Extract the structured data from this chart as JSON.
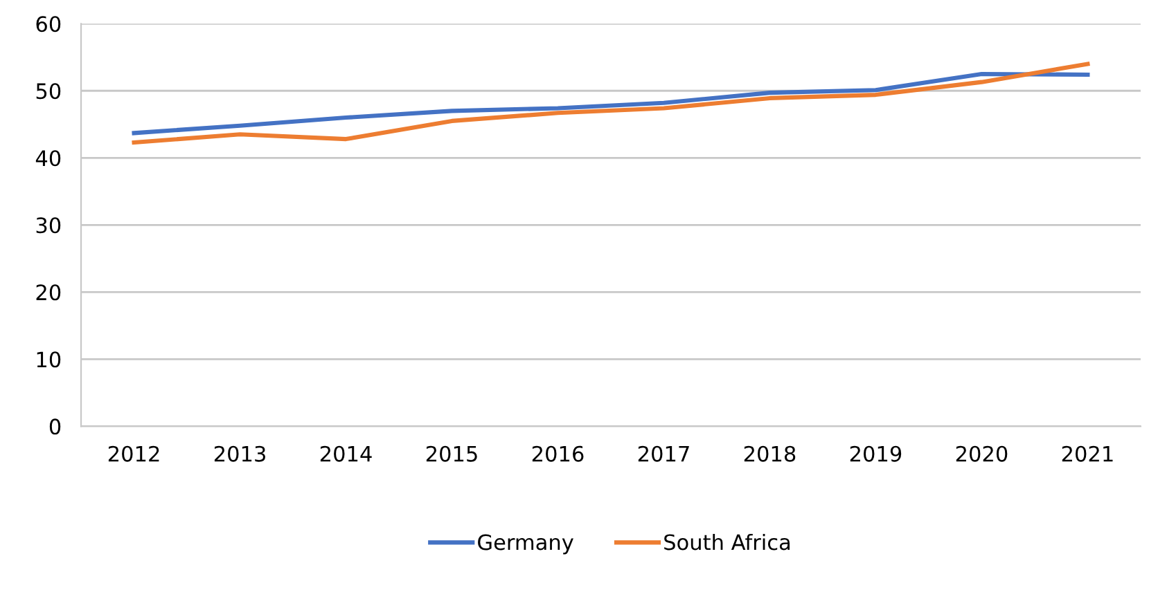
{
  "chart_data": {
    "type": "line",
    "categories": [
      "2012",
      "2013",
      "2014",
      "2015",
      "2016",
      "2017",
      "2018",
      "2019",
      "2020",
      "2021"
    ],
    "series": [
      {
        "name": "Germany",
        "color": "#4472c4",
        "values": [
          43.7,
          44.8,
          46.0,
          47.0,
          47.4,
          48.2,
          49.7,
          50.1,
          52.5,
          52.4
        ]
      },
      {
        "name": "South Africa",
        "color": "#ed7d31",
        "values": [
          42.3,
          43.5,
          42.8,
          45.5,
          46.7,
          47.4,
          48.9,
          49.4,
          51.3,
          54.0
        ]
      }
    ],
    "ylim": [
      0,
      60
    ],
    "yticks": [
      0,
      10,
      20,
      30,
      40,
      50,
      60
    ],
    "grid": "y",
    "legend": "bottom",
    "marker": "none",
    "line_style": "solid"
  }
}
